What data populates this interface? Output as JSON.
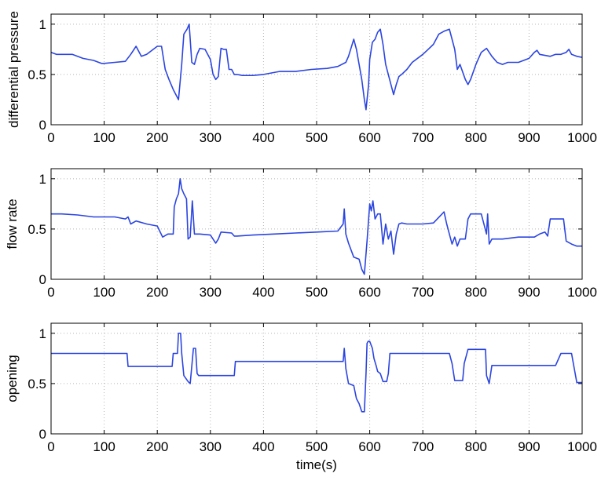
{
  "colors": {
    "line": "#2b45e0",
    "axes": "#000000",
    "grid": "#b4b4b4",
    "background": "#ffffff"
  },
  "chart_data": [
    {
      "type": "line",
      "title": "",
      "xlabel": "",
      "ylabel": "differential pressure",
      "xlim": [
        0,
        1000
      ],
      "ylim": [
        0,
        1.1
      ],
      "xticks": [
        "0",
        "100",
        "200",
        "300",
        "400",
        "500",
        "600",
        "700",
        "800",
        "900",
        "1000"
      ],
      "yticks": [
        "0",
        "0.5",
        "1"
      ],
      "grid": true,
      "x": [
        0,
        10,
        20,
        40,
        60,
        80,
        95,
        100,
        120,
        140,
        150,
        160,
        170,
        180,
        200,
        208,
        215,
        222,
        230,
        240,
        246,
        250,
        256,
        260,
        265,
        270,
        275,
        280,
        290,
        300,
        305,
        310,
        315,
        320,
        325,
        330,
        335,
        340,
        345,
        350,
        360,
        380,
        400,
        430,
        460,
        490,
        520,
        540,
        555,
        560,
        570,
        575,
        580,
        585,
        590,
        593,
        595,
        598,
        600,
        605,
        610,
        615,
        620,
        625,
        630,
        640,
        645,
        650,
        655,
        660,
        670,
        680,
        700,
        710,
        720,
        730,
        740,
        750,
        755,
        760,
        765,
        770,
        780,
        785,
        790,
        800,
        810,
        820,
        825,
        830,
        840,
        850,
        860,
        880,
        900,
        910,
        915,
        920,
        940,
        950,
        960,
        970,
        975,
        980,
        990,
        1000
      ],
      "values": [
        0.72,
        0.7,
        0.7,
        0.7,
        0.66,
        0.64,
        0.61,
        0.61,
        0.62,
        0.63,
        0.7,
        0.78,
        0.68,
        0.7,
        0.78,
        0.78,
        0.55,
        0.45,
        0.35,
        0.25,
        0.6,
        0.9,
        0.95,
        1.0,
        0.62,
        0.6,
        0.7,
        0.76,
        0.75,
        0.65,
        0.5,
        0.45,
        0.48,
        0.76,
        0.75,
        0.75,
        0.55,
        0.55,
        0.5,
        0.5,
        0.49,
        0.49,
        0.5,
        0.53,
        0.53,
        0.55,
        0.56,
        0.58,
        0.62,
        0.68,
        0.85,
        0.75,
        0.6,
        0.45,
        0.25,
        0.15,
        0.25,
        0.4,
        0.65,
        0.82,
        0.85,
        0.92,
        0.95,
        0.8,
        0.6,
        0.4,
        0.3,
        0.4,
        0.48,
        0.5,
        0.55,
        0.62,
        0.7,
        0.75,
        0.8,
        0.9,
        0.93,
        0.95,
        0.85,
        0.75,
        0.55,
        0.6,
        0.45,
        0.4,
        0.45,
        0.6,
        0.72,
        0.76,
        0.72,
        0.68,
        0.62,
        0.6,
        0.62,
        0.62,
        0.66,
        0.72,
        0.74,
        0.7,
        0.68,
        0.7,
        0.7,
        0.72,
        0.75,
        0.7,
        0.68,
        0.67
      ]
    },
    {
      "type": "line",
      "title": "",
      "xlabel": "",
      "ylabel": "flow rate",
      "xlim": [
        0,
        1000
      ],
      "ylim": [
        0,
        1.1
      ],
      "xticks": [
        "0",
        "100",
        "200",
        "300",
        "400",
        "500",
        "600",
        "700",
        "800",
        "900",
        "1000"
      ],
      "yticks": [
        "0",
        "0.5",
        "1"
      ],
      "grid": true,
      "x": [
        0,
        20,
        50,
        80,
        100,
        120,
        140,
        145,
        150,
        160,
        180,
        200,
        210,
        220,
        230,
        232,
        236,
        240,
        243,
        246,
        250,
        255,
        258,
        262,
        266,
        270,
        275,
        280,
        300,
        310,
        315,
        320,
        340,
        345,
        350,
        380,
        420,
        460,
        500,
        540,
        550,
        552,
        555,
        560,
        570,
        580,
        585,
        590,
        595,
        600,
        603,
        606,
        610,
        615,
        620,
        625,
        630,
        635,
        640,
        645,
        650,
        655,
        660,
        670,
        690,
        700,
        720,
        740,
        745,
        750,
        755,
        760,
        765,
        770,
        780,
        785,
        790,
        800,
        810,
        820,
        822,
        825,
        830,
        850,
        880,
        910,
        920,
        930,
        935,
        940,
        950,
        965,
        970,
        980,
        990,
        1000
      ],
      "values": [
        0.65,
        0.65,
        0.64,
        0.62,
        0.62,
        0.62,
        0.6,
        0.62,
        0.55,
        0.58,
        0.55,
        0.53,
        0.42,
        0.45,
        0.45,
        0.72,
        0.8,
        0.85,
        1.0,
        0.9,
        0.85,
        0.8,
        0.4,
        0.42,
        0.78,
        0.45,
        0.45,
        0.45,
        0.44,
        0.36,
        0.4,
        0.47,
        0.46,
        0.43,
        0.43,
        0.44,
        0.45,
        0.46,
        0.47,
        0.48,
        0.55,
        0.7,
        0.45,
        0.36,
        0.22,
        0.2,
        0.1,
        0.05,
        0.38,
        0.75,
        0.68,
        0.78,
        0.6,
        0.65,
        0.65,
        0.35,
        0.55,
        0.4,
        0.48,
        0.25,
        0.45,
        0.55,
        0.56,
        0.55,
        0.55,
        0.55,
        0.56,
        0.67,
        0.55,
        0.45,
        0.35,
        0.42,
        0.33,
        0.4,
        0.4,
        0.6,
        0.65,
        0.65,
        0.65,
        0.45,
        0.65,
        0.35,
        0.4,
        0.4,
        0.42,
        0.42,
        0.45,
        0.47,
        0.43,
        0.6,
        0.6,
        0.6,
        0.38,
        0.35,
        0.33,
        0.33
      ]
    },
    {
      "type": "line",
      "title": "",
      "xlabel": "time(s)",
      "ylabel": "opening",
      "xlim": [
        0,
        1000
      ],
      "ylim": [
        0,
        1.1
      ],
      "xticks": [
        "0",
        "100",
        "200",
        "300",
        "400",
        "500",
        "600",
        "700",
        "800",
        "900",
        "1000"
      ],
      "yticks": [
        "0",
        "0.5",
        "1"
      ],
      "grid": true,
      "x": [
        0,
        100,
        143,
        145,
        228,
        230,
        238,
        240,
        244,
        246,
        250,
        258,
        262,
        268,
        272,
        275,
        278,
        280,
        300,
        345,
        347,
        380,
        450,
        550,
        552,
        555,
        560,
        570,
        575,
        580,
        585,
        590,
        593,
        595,
        597,
        600,
        605,
        608,
        612,
        615,
        620,
        625,
        632,
        635,
        638,
        650,
        700,
        750,
        755,
        760,
        775,
        778,
        785,
        810,
        818,
        820,
        825,
        830,
        900,
        930,
        950,
        960,
        965,
        970,
        980,
        990,
        1000
      ],
      "values": [
        0.8,
        0.8,
        0.8,
        0.67,
        0.67,
        0.8,
        0.8,
        1.0,
        1.0,
        0.8,
        0.58,
        0.52,
        0.5,
        0.85,
        0.85,
        0.6,
        0.58,
        0.58,
        0.58,
        0.58,
        0.72,
        0.72,
        0.72,
        0.72,
        0.85,
        0.65,
        0.5,
        0.48,
        0.35,
        0.3,
        0.22,
        0.22,
        0.6,
        0.9,
        0.92,
        0.92,
        0.85,
        0.75,
        0.68,
        0.62,
        0.6,
        0.52,
        0.52,
        0.6,
        0.8,
        0.8,
        0.8,
        0.8,
        0.7,
        0.53,
        0.53,
        0.7,
        0.84,
        0.84,
        0.84,
        0.58,
        0.5,
        0.68,
        0.68,
        0.68,
        0.68,
        0.8,
        0.8,
        0.8,
        0.8,
        0.51,
        0.51
      ]
    }
  ]
}
